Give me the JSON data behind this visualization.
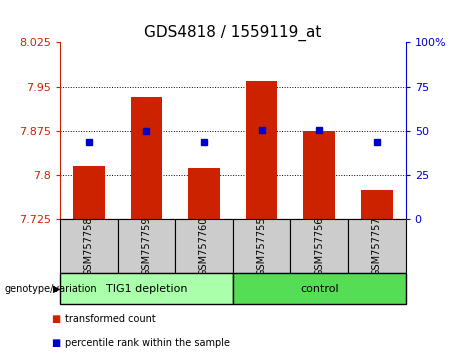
{
  "title": "GDS4818 / 1559119_at",
  "samples": [
    "GSM757758",
    "GSM757759",
    "GSM757760",
    "GSM757755",
    "GSM757756",
    "GSM757757"
  ],
  "red_values": [
    7.815,
    7.932,
    7.812,
    7.96,
    7.875,
    7.775
  ],
  "blue_values": [
    7.856,
    7.875,
    7.856,
    7.876,
    7.876,
    7.856
  ],
  "ylim": [
    7.725,
    8.025
  ],
  "yticks": [
    7.725,
    7.8,
    7.875,
    7.95,
    8.025
  ],
  "ytick_labels": [
    "7.725",
    "7.8",
    "7.875",
    "7.95",
    "8.025"
  ],
  "right_yticks": [
    0,
    25,
    50,
    75,
    100
  ],
  "right_ytick_labels": [
    "0",
    "25",
    "50",
    "75",
    "100%"
  ],
  "grid_lines": [
    7.8,
    7.875,
    7.95
  ],
  "group1_label": "TIG1 depletion",
  "group2_label": "control",
  "genotype_label": "genotype/variation",
  "legend1": "transformed count",
  "legend2": "percentile rank within the sample",
  "bar_color": "#cc2200",
  "dot_color": "#0000cc",
  "group1_color": "#aaffaa",
  "group2_color": "#55dd55",
  "sample_bg_color": "#cccccc",
  "bar_width": 0.55,
  "title_fontsize": 11,
  "tick_fontsize": 8,
  "label_fontsize": 8,
  "sample_fontsize": 7
}
